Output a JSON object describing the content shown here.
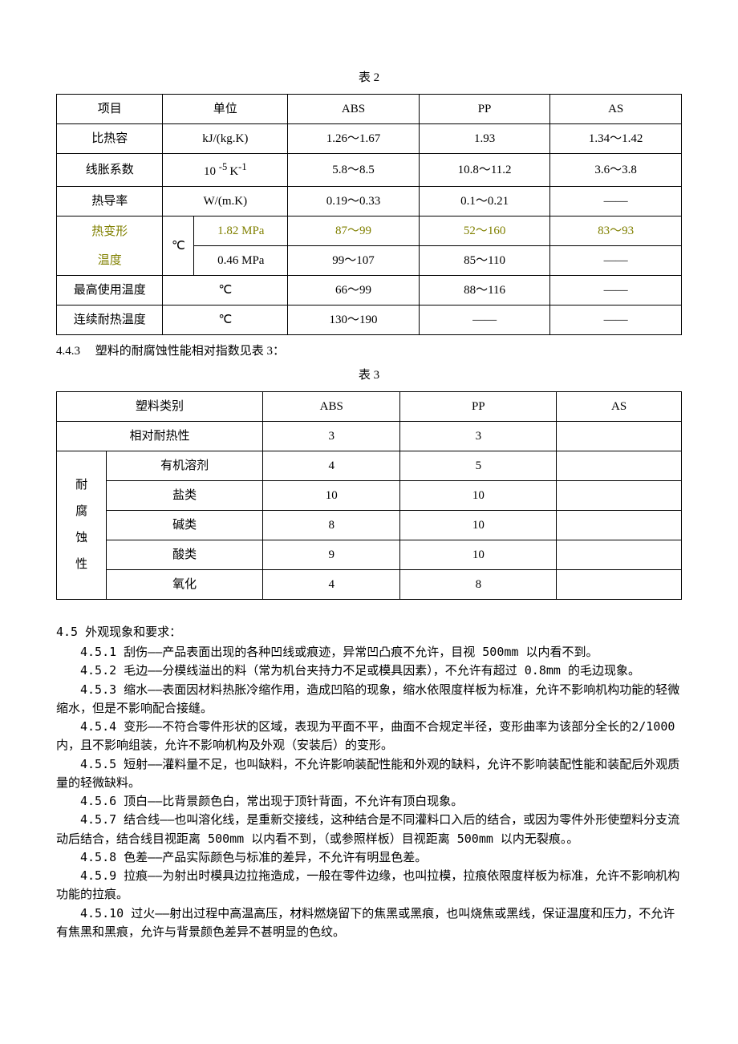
{
  "table2": {
    "caption": "表 2",
    "headers": [
      "项目",
      "单位",
      "ABS",
      "PP",
      "AS"
    ],
    "rows": [
      {
        "item": "比热容",
        "unit": "kJ/(kg.K)",
        "abs": "1.26～1.67",
        "pp": "1.93",
        "as": "1.34～1.42"
      },
      {
        "item": "线胀系数",
        "unit_html": "10 <sup>-5 </sup>K<sup>-1</sup>",
        "abs": "5.8～8.5",
        "pp": "10.8～11.2",
        "as": "3.6～3.8"
      },
      {
        "item": "热导率",
        "unit": "W/(m.K)",
        "abs": "0.19～0.33",
        "pp": "0.1～0.21",
        "as": "——"
      }
    ],
    "heat_deform": {
      "item": "热变形温度",
      "unit": "℃",
      "sub": [
        {
          "p": "1.82 MPa",
          "abs": "87～99",
          "pp": "52～160",
          "as": "83～93",
          "olive": true
        },
        {
          "p": "0.46 MPa",
          "abs": "99～107",
          "pp": "85～110",
          "as": "——",
          "olive": false
        }
      ]
    },
    "extra": [
      {
        "item": "最高使用温度",
        "unit": "℃",
        "abs": "66～99",
        "pp": "88～116",
        "as": "——"
      },
      {
        "item": "连续耐热温度",
        "unit": "℃",
        "abs": "130～190",
        "pp": "——",
        "as": "——"
      }
    ]
  },
  "note_443": "4.4.3　 塑料的耐腐蚀性能相对指数见表 3：",
  "table3": {
    "caption": "表 3",
    "headers": [
      "塑料类别",
      "ABS",
      "PP",
      "AS"
    ],
    "row_rel_heat": {
      "label": "相对耐热性",
      "abs": "3",
      "pp": "3",
      "as": ""
    },
    "group_label": "耐腐蚀性",
    "group_rows": [
      {
        "label": "有机溶剂",
        "abs": "4",
        "pp": "5",
        "as": ""
      },
      {
        "label": "盐类",
        "abs": "10",
        "pp": "10",
        "as": ""
      },
      {
        "label": "碱类",
        "abs": "8",
        "pp": "10",
        "as": ""
      },
      {
        "label": "酸类",
        "abs": "9",
        "pp": "10",
        "as": ""
      },
      {
        "label": "氧化",
        "abs": "4",
        "pp": "8",
        "as": ""
      }
    ]
  },
  "section_45": {
    "heading": "4.5 外观现象和要求：",
    "items": [
      "4.5.1 刮伤——产品表面出现的各种凹线或痕迹，异常凹凸痕不允许，目视 500mm 以内看不到。",
      "4.5.2 毛边——分模线溢出的料（常为机台夹持力不足或模具因素），不允许有超过 0.8mm 的毛边现象。",
      "4.5.3 缩水——表面因材料热胀冷缩作用，造成凹陷的现象，缩水依限度样板为标准，允许不影响机构功能的轻微缩水，但是不影响配合接缝。",
      "4.5.4 变形——不符合零件形状的区域，表现为平面不平，曲面不合规定半径，变形曲率为该部分全长的2/1000 内，且不影响组装，允许不影响机构及外观（安装后）的变形。",
      "4.5.5 短射——灌料量不足，也叫缺料，不允许影响装配性能和外观的缺料，允许不影响装配性能和装配后外观质量的轻微缺料。",
      "4.5.6 顶白——比背景颜色白，常出现于顶针背面，不允许有顶白现象。",
      "4.5.7 结合线——也叫溶化线，是重新交接线，这种结合是不同灌料口入后的结合，或因为零件外形使塑料分支流动后结合，结合线目视距离 500mm 以内看不到，（或参照样板）目视距离 500mm 以内无裂痕。。",
      "4.5.8 色差——产品实际颜色与标准的差异，不允许有明显色差。",
      "4.5.9 拉痕——为射出时模具边拉拖造成，一般在零件边缘，也叫拉模，拉痕依限度样板为标准，允许不影响机构功能的拉痕。",
      "4.5.10 过火——射出过程中高温高压，材料燃烧留下的焦黑或黑痕，也叫烧焦或黑线，保证温度和压力，不允许有焦黑和黑痕，允许与背景颜色差异不甚明显的色纹。"
    ]
  }
}
